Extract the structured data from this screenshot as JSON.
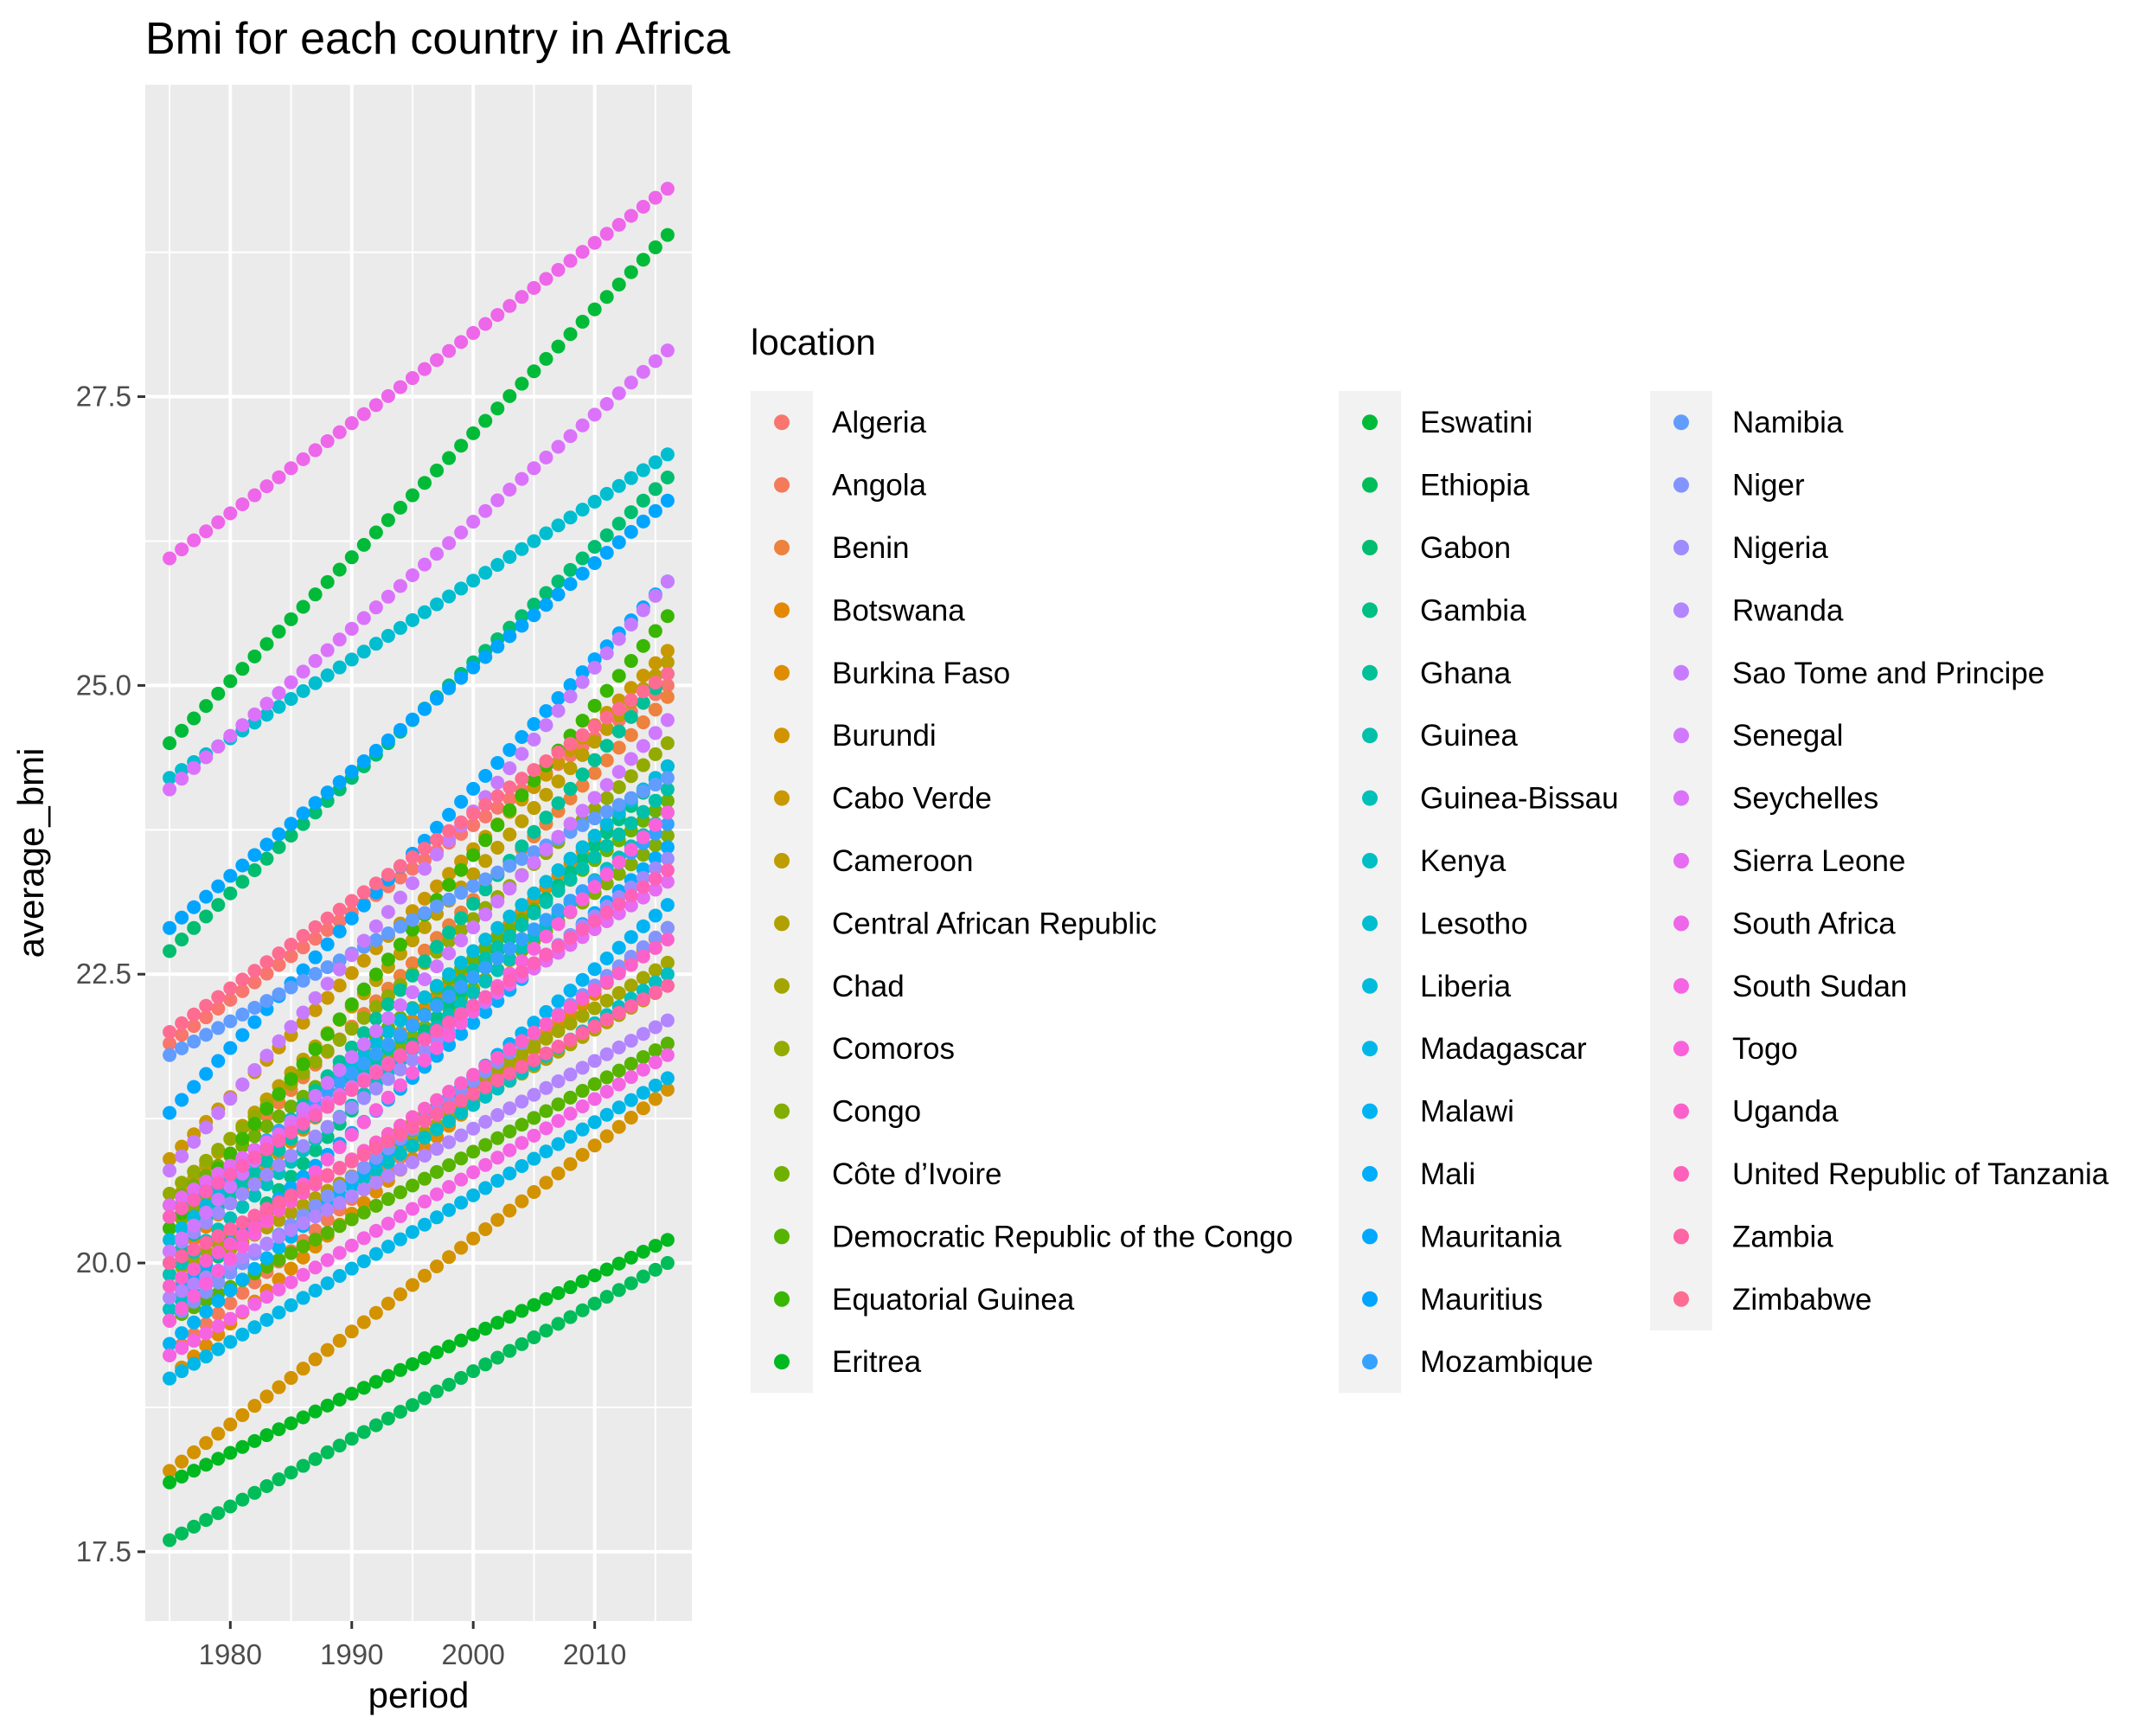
{
  "chart_data": {
    "type": "scatter",
    "title": "Bmi for each country in Africa",
    "xlabel": "period",
    "ylabel": "average_bmi",
    "xlim": [
      1973.0,
      2018.0
    ],
    "ylim": [
      16.9,
      30.2
    ],
    "x_ticks": [
      "1980",
      "1990",
      "2000",
      "2010"
    ],
    "y_ticks": [
      "17.5",
      "20.0",
      "22.5",
      "25.0",
      "27.5"
    ],
    "grid": true,
    "legend_title": "location",
    "legend_position": "right",
    "x_range": [
      1975,
      2016
    ],
    "series": [
      {
        "name": "Algeria",
        "color": "#F8766D",
        "y_start": 21.9,
        "y_end": 25.0
      },
      {
        "name": "Angola",
        "color": "#F37B59",
        "y_start": 19.2,
        "y_end": 22.9
      },
      {
        "name": "Benin",
        "color": "#ED813E",
        "y_start": 20.4,
        "y_end": 24.9
      },
      {
        "name": "Botswana",
        "color": "#E58700",
        "y_start": 20.0,
        "y_end": 24.3
      },
      {
        "name": "Burkina Faso",
        "color": "#DE8C00",
        "y_start": 19.0,
        "y_end": 22.9
      },
      {
        "name": "Burundi",
        "color": "#D39200",
        "y_start": 18.2,
        "y_end": 21.5
      },
      {
        "name": "Cabo Verde",
        "color": "#C99800",
        "y_start": 20.9,
        "y_end": 25.3
      },
      {
        "name": "Cameroon",
        "color": "#BD9D00",
        "y_start": 20.5,
        "y_end": 25.2
      },
      {
        "name": "Central African Republic",
        "color": "#B0A100",
        "y_start": 19.8,
        "y_end": 22.4
      },
      {
        "name": "Chad",
        "color": "#A3A500",
        "y_start": 19.9,
        "y_end": 22.6
      },
      {
        "name": "Comoros",
        "color": "#93AA00",
        "y_start": 20.6,
        "y_end": 24.5
      },
      {
        "name": "Congo",
        "color": "#83AD00",
        "y_start": 20.3,
        "y_end": 23.7
      },
      {
        "name": "Côte d’Ivoire",
        "color": "#6FB000",
        "y_start": 20.5,
        "y_end": 24.0
      },
      {
        "name": "Democratic Republic of the Congo",
        "color": "#56B300",
        "y_start": 19.5,
        "y_end": 21.9
      },
      {
        "name": "Equatorial Guinea",
        "color": "#39B600",
        "y_start": 20.3,
        "y_end": 25.6
      },
      {
        "name": "Eritrea",
        "color": "#00B81F",
        "y_start": 18.1,
        "y_end": 20.2
      },
      {
        "name": "Eswatini",
        "color": "#00BA38",
        "y_start": 24.5,
        "y_end": 28.9
      },
      {
        "name": "Ethiopia",
        "color": "#00BC59",
        "y_start": 17.6,
        "y_end": 20.0
      },
      {
        "name": "Gabon",
        "color": "#00BD6F",
        "y_start": 22.7,
        "y_end": 26.8
      },
      {
        "name": "Gambia",
        "color": "#00BF84",
        "y_start": 19.6,
        "y_end": 24.3
      },
      {
        "name": "Ghana",
        "color": "#00C097",
        "y_start": 20.0,
        "y_end": 25.1
      },
      {
        "name": "Guinea",
        "color": "#00C0A9",
        "y_start": 20.1,
        "y_end": 24.1
      },
      {
        "name": "Guinea-Bissau",
        "color": "#00C0B8",
        "y_start": 19.9,
        "y_end": 23.9
      },
      {
        "name": "Kenya",
        "color": "#00BFC4",
        "y_start": 19.6,
        "y_end": 22.5
      },
      {
        "name": "Lesotho",
        "color": "#00BDD0",
        "y_start": 24.2,
        "y_end": 27.0
      },
      {
        "name": "Liberia",
        "color": "#00BBDB",
        "y_start": 20.2,
        "y_end": 24.3
      },
      {
        "name": "Madagascar",
        "color": "#00B7E8",
        "y_start": 19.0,
        "y_end": 21.6
      },
      {
        "name": "Malawi",
        "color": "#00B3F2",
        "y_start": 19.3,
        "y_end": 23.1
      },
      {
        "name": "Mali",
        "color": "#00ADFA",
        "y_start": 19.7,
        "y_end": 23.6
      },
      {
        "name": "Mauritania",
        "color": "#00A8FF",
        "y_start": 21.3,
        "y_end": 25.9
      },
      {
        "name": "Mauritius",
        "color": "#00A5FF",
        "y_start": 22.9,
        "y_end": 26.6
      },
      {
        "name": "Mozambique",
        "color": "#35A2FF",
        "y_start": 20.4,
        "y_end": 23.8
      },
      {
        "name": "Namibia",
        "color": "#619CFF",
        "y_start": 21.8,
        "y_end": 24.2
      },
      {
        "name": "Niger",
        "color": "#8494FF",
        "y_start": 19.5,
        "y_end": 22.9
      },
      {
        "name": "Nigeria",
        "color": "#9D8CFF",
        "y_start": 20.1,
        "y_end": 23.5
      },
      {
        "name": "Rwanda",
        "color": "#B385FF",
        "y_start": 19.7,
        "y_end": 22.1
      },
      {
        "name": "Sao Tome and Principe",
        "color": "#C77CFF",
        "y_start": 20.8,
        "y_end": 25.9
      },
      {
        "name": "Senegal",
        "color": "#D078FF",
        "y_start": 20.1,
        "y_end": 24.7
      },
      {
        "name": "Seychelles",
        "color": "#DB72FB",
        "y_start": 24.1,
        "y_end": 27.9
      },
      {
        "name": "Sierra Leone",
        "color": "#E56CF3",
        "y_start": 20.5,
        "y_end": 23.3
      },
      {
        "name": "South Africa",
        "color": "#EE66EA",
        "y_start": 26.1,
        "y_end": 29.3
      },
      {
        "name": "South Sudan",
        "color": "#F564E3",
        "y_start": 19.2,
        "y_end": 21.8
      },
      {
        "name": "Togo",
        "color": "#FA62DB",
        "y_start": 19.5,
        "y_end": 23.9
      },
      {
        "name": "Uganda",
        "color": "#FC61CB",
        "y_start": 19.8,
        "y_end": 22.8
      },
      {
        "name": "United Republic of Tanzania",
        "color": "#FD61B9",
        "y_start": 20.4,
        "y_end": 23.4
      },
      {
        "name": "Zambia",
        "color": "#FF64A5",
        "y_start": 20.0,
        "y_end": 22.4
      },
      {
        "name": "Zimbabwe",
        "color": "#FF6C91",
        "y_start": 22.0,
        "y_end": 25.1
      }
    ]
  }
}
